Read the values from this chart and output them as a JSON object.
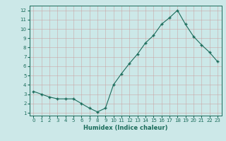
{
  "x": [
    0,
    1,
    2,
    3,
    4,
    5,
    6,
    7,
    8,
    9,
    10,
    11,
    12,
    13,
    14,
    15,
    16,
    17,
    18,
    19,
    20,
    21,
    22,
    23
  ],
  "y": [
    3.3,
    3.0,
    2.7,
    2.5,
    2.5,
    2.5,
    2.0,
    1.5,
    1.1,
    1.5,
    4.0,
    5.2,
    6.3,
    7.3,
    8.5,
    9.3,
    10.5,
    11.2,
    12.0,
    10.5,
    9.2,
    8.3,
    7.5,
    6.5
  ],
  "title": "",
  "xlabel": "Humidex (Indice chaleur)",
  "ylabel": "",
  "xlim": [
    -0.5,
    23.5
  ],
  "ylim": [
    0.7,
    12.5
  ],
  "yticks": [
    1,
    2,
    3,
    4,
    5,
    6,
    7,
    8,
    9,
    10,
    11,
    12
  ],
  "xticks": [
    0,
    1,
    2,
    3,
    4,
    5,
    6,
    7,
    8,
    9,
    10,
    11,
    12,
    13,
    14,
    15,
    16,
    17,
    18,
    19,
    20,
    21,
    22,
    23
  ],
  "line_color": "#1a6b5a",
  "marker_color": "#1a6b5a",
  "bg_color": "#cce8e8",
  "grid_color": "#b8d8d8",
  "axes_color": "#1a6b5a",
  "tick_fontsize": 5.0,
  "xlabel_fontsize": 6.0
}
